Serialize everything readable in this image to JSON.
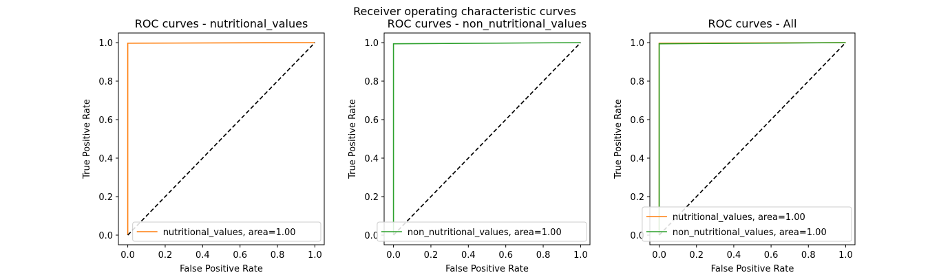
{
  "figure": {
    "suptitle": "Receiver operating characteristic curves",
    "background": "#ffffff"
  },
  "colors": {
    "nutritional_values": "#ff7f0e",
    "non_nutritional_values": "#2ca02c",
    "chance_line": "#000000"
  },
  "chart_data": [
    {
      "type": "line",
      "title": "ROC curves - nutritional_values",
      "xlabel": "False Positive Rate",
      "ylabel": "True Positive Rate",
      "xlim": [
        -0.05,
        1.05
      ],
      "ylim": [
        -0.05,
        1.05
      ],
      "xticks": [
        0.0,
        0.2,
        0.4,
        0.6,
        0.8,
        1.0
      ],
      "yticks": [
        0.0,
        0.2,
        0.4,
        0.6,
        0.8,
        1.0
      ],
      "xtick_labels": [
        "0.0",
        "0.2",
        "0.4",
        "0.6",
        "0.8",
        "1.0"
      ],
      "ytick_labels": [
        "0.0",
        "0.2",
        "0.4",
        "0.6",
        "0.8",
        "1.0"
      ],
      "grid": false,
      "legend_position": "lower-right",
      "series": [
        {
          "name": "nutritional_values, area=1.00",
          "color": "#ff7f0e",
          "style": "solid",
          "x": [
            0.0,
            0.0,
            0.003,
            1.0
          ],
          "y": [
            0.0,
            0.997,
            0.997,
            1.0
          ]
        },
        {
          "color": "#000000",
          "style": "dashed",
          "x": [
            0.0,
            1.0
          ],
          "y": [
            0.0,
            1.0
          ]
        }
      ]
    },
    {
      "type": "line",
      "title": "ROC curves - non_nutritional_values",
      "xlabel": "False Positive Rate",
      "ylabel": "True Positive Rate",
      "xlim": [
        -0.05,
        1.05
      ],
      "ylim": [
        -0.05,
        1.05
      ],
      "xticks": [
        0.0,
        0.2,
        0.4,
        0.6,
        0.8,
        1.0
      ],
      "yticks": [
        0.0,
        0.2,
        0.4,
        0.6,
        0.8,
        1.0
      ],
      "xtick_labels": [
        "0.0",
        "0.2",
        "0.4",
        "0.6",
        "0.8",
        "1.0"
      ],
      "ytick_labels": [
        "0.0",
        "0.2",
        "0.4",
        "0.6",
        "0.8",
        "1.0"
      ],
      "grid": false,
      "legend_position": "lower-right",
      "series": [
        {
          "name": "non_nutritional_values, area=1.00",
          "color": "#2ca02c",
          "style": "solid",
          "x": [
            0.0,
            0.0,
            0.003,
            1.0
          ],
          "y": [
            0.0,
            0.994,
            0.994,
            1.0
          ]
        },
        {
          "color": "#000000",
          "style": "dashed",
          "x": [
            0.0,
            1.0
          ],
          "y": [
            0.0,
            1.0
          ]
        }
      ]
    },
    {
      "type": "line",
      "title": "ROC curves - All",
      "xlabel": "False Positive Rate",
      "ylabel": "True Positive Rate",
      "xlim": [
        -0.05,
        1.05
      ],
      "ylim": [
        -0.05,
        1.05
      ],
      "xticks": [
        0.0,
        0.2,
        0.4,
        0.6,
        0.8,
        1.0
      ],
      "yticks": [
        0.0,
        0.2,
        0.4,
        0.6,
        0.8,
        1.0
      ],
      "xtick_labels": [
        "0.0",
        "0.2",
        "0.4",
        "0.6",
        "0.8",
        "1.0"
      ],
      "ytick_labels": [
        "0.0",
        "0.2",
        "0.4",
        "0.6",
        "0.8",
        "1.0"
      ],
      "grid": false,
      "legend_position": "lower-right",
      "series": [
        {
          "name": "nutritional_values, area=1.00",
          "color": "#ff7f0e",
          "style": "solid",
          "x": [
            0.0,
            0.0,
            0.003,
            1.0
          ],
          "y": [
            0.0,
            0.997,
            0.997,
            1.0
          ]
        },
        {
          "name": "non_nutritional_values, area=1.00",
          "color": "#2ca02c",
          "style": "solid",
          "x": [
            0.0,
            0.0,
            0.003,
            1.0
          ],
          "y": [
            0.0,
            0.994,
            0.994,
            1.0
          ]
        },
        {
          "color": "#000000",
          "style": "dashed",
          "x": [
            0.0,
            1.0
          ],
          "y": [
            0.0,
            1.0
          ]
        }
      ]
    }
  ]
}
